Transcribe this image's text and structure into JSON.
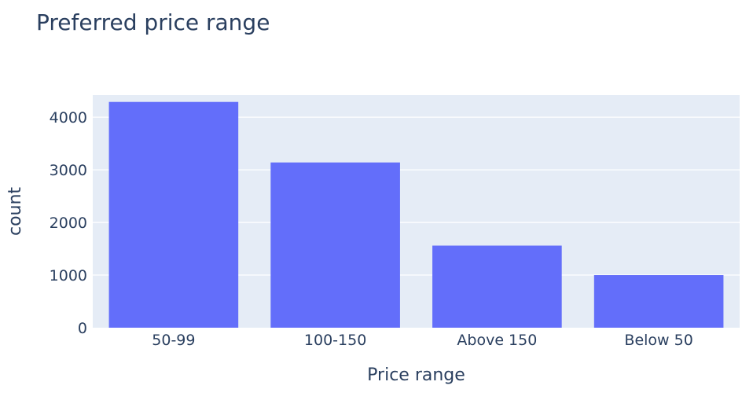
{
  "chart_data": {
    "type": "bar",
    "title": "Preferred price range",
    "xlabel": "Price range",
    "ylabel": "count",
    "categories": [
      "50-99",
      "100-150",
      "Above 150",
      "Below 50"
    ],
    "values": [
      4290,
      3140,
      1560,
      1000
    ],
    "ylim": [
      0,
      4420
    ],
    "yticks": [
      0,
      1000,
      2000,
      3000,
      4000
    ],
    "ytick_labels": [
      "0",
      "1000",
      "2000",
      "3000",
      "4000"
    ],
    "grid": true,
    "legend": "none",
    "colors": {
      "bar": "#636efa",
      "plot_background": "#e5ecf6",
      "text": "#2a3f5f"
    }
  }
}
